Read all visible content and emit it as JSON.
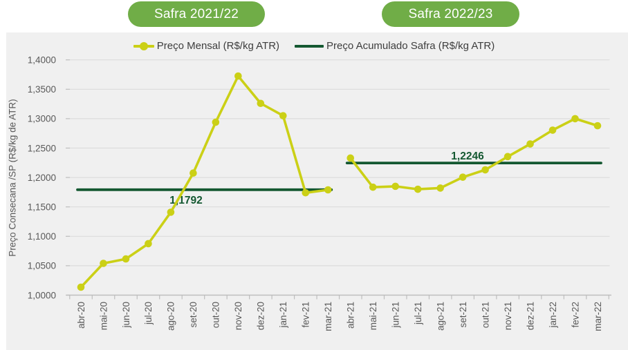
{
  "badges": [
    {
      "label": "Safra 2021/22"
    },
    {
      "label": "Safra 2022/23"
    }
  ],
  "legend": [
    {
      "label": "Preço Mensal (R$/kg ATR)"
    },
    {
      "label": "Preço Acumulado Safra (R$/kg ATR)"
    }
  ],
  "colors": {
    "badge_green": "#70ad47",
    "monthly_line": "#cbd016",
    "accumulated_line": "#145831",
    "panel_bg": "#f0f0f0",
    "grid": "#dcdcdc",
    "axis": "#bdbdbd",
    "tick_text": "#595959"
  },
  "chart_data": {
    "type": "line",
    "title": "",
    "xlabel": "",
    "ylabel": "Preço Consecana /SP (R$/kg de ATR)",
    "grid": true,
    "legend_position": "top",
    "ylim": [
      1.0,
      1.4
    ],
    "y_ticks": [
      "1,0000",
      "1,0500",
      "1,1000",
      "1,1500",
      "1,2000",
      "1,2500",
      "1,3000",
      "1,3500",
      "1,4000"
    ],
    "categories": [
      "abr-20",
      "mai-20",
      "jun-20",
      "jul-20",
      "ago-20",
      "set-20",
      "out-20",
      "nov-20",
      "dez-20",
      "jan-21",
      "fev-21",
      "mar-21",
      "abr-21",
      "mai-21",
      "jun-21",
      "jul-21",
      "ago-21",
      "set-21",
      "out-21",
      "nov-21",
      "dez-21",
      "jan-22",
      "fev-22",
      "mar-22"
    ],
    "series": [
      {
        "name": "Preço Mensal (R$/kg ATR)",
        "color": "#cbd016",
        "values": [
          1.0135,
          1.054,
          1.0615,
          1.0875,
          1.141,
          1.2075,
          1.294,
          1.3725,
          1.326,
          1.305,
          1.174,
          1.179,
          1.233,
          1.1835,
          1.185,
          1.18,
          1.182,
          1.2005,
          1.213,
          1.2355,
          1.257,
          1.2805,
          1.3,
          1.288
        ],
        "segments": [
          [
            0,
            11
          ],
          [
            12,
            23
          ]
        ]
      }
    ],
    "reference_lines": [
      {
        "name": "Preço Acumulado Safra (R$/kg ATR)",
        "value": 1.1792,
        "label": "1,1792",
        "span": [
          0,
          11
        ],
        "label_position": "below",
        "color": "#145831"
      },
      {
        "name": "Preço Acumulado Safra (R$/kg ATR)",
        "value": 1.2246,
        "label": "1,2246",
        "span": [
          12,
          23
        ],
        "label_position": "above",
        "color": "#145831"
      }
    ]
  }
}
